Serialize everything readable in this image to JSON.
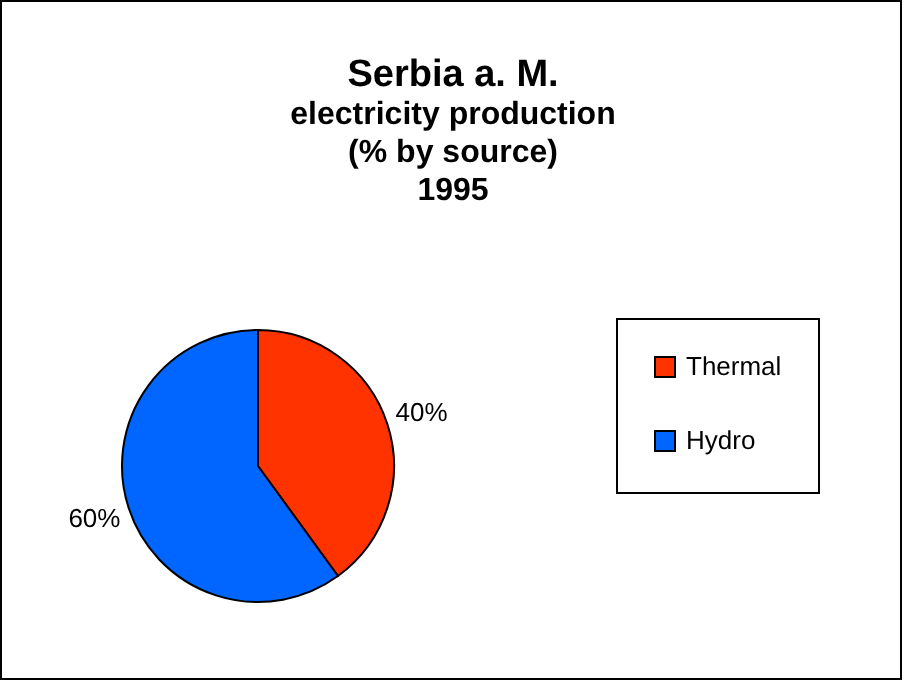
{
  "chart_data": {
    "type": "pie",
    "title": "Serbia a. M.",
    "subtitle": "electricity production\n(% by source)\n1995",
    "categories": [
      "Thermal",
      "Hydro"
    ],
    "values": [
      40,
      60
    ],
    "colors": [
      "#ff3300",
      "#0066ff"
    ],
    "value_labels": [
      "40%",
      "60%"
    ],
    "legend": "right"
  }
}
